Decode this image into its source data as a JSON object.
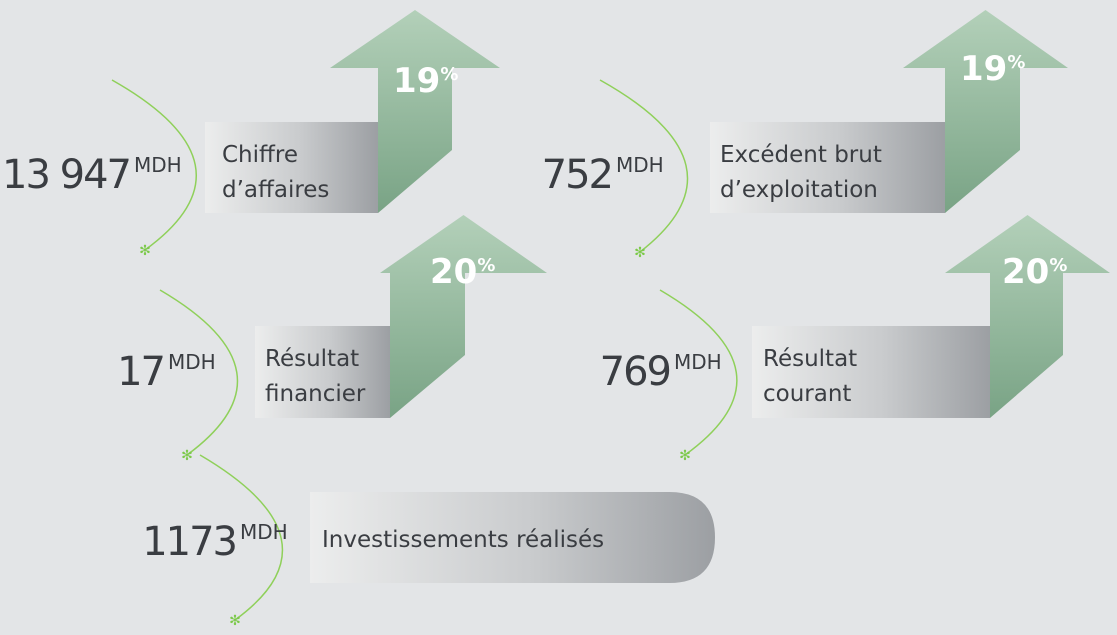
{
  "items": [
    {
      "value": "13 947",
      "unit": "MDH",
      "label": [
        "Chiffre",
        "d’affaires"
      ],
      "growth": "19",
      "growth_unit": "%"
    },
    {
      "value": "752",
      "unit": "MDH",
      "label": [
        "Excédent brut",
        "d’exploitation"
      ],
      "growth": "19",
      "growth_unit": "%"
    },
    {
      "value": "17",
      "unit": "MDH",
      "label": [
        "Résultat",
        "financier"
      ],
      "growth": "20",
      "growth_unit": "%"
    },
    {
      "value": "769",
      "unit": "MDH",
      "label": [
        "Résultat",
        "courant"
      ],
      "growth": "20",
      "growth_unit": "%"
    },
    {
      "value": "1173",
      "unit": "MDH",
      "label": [
        "Investissements réalisés"
      ]
    }
  ]
}
